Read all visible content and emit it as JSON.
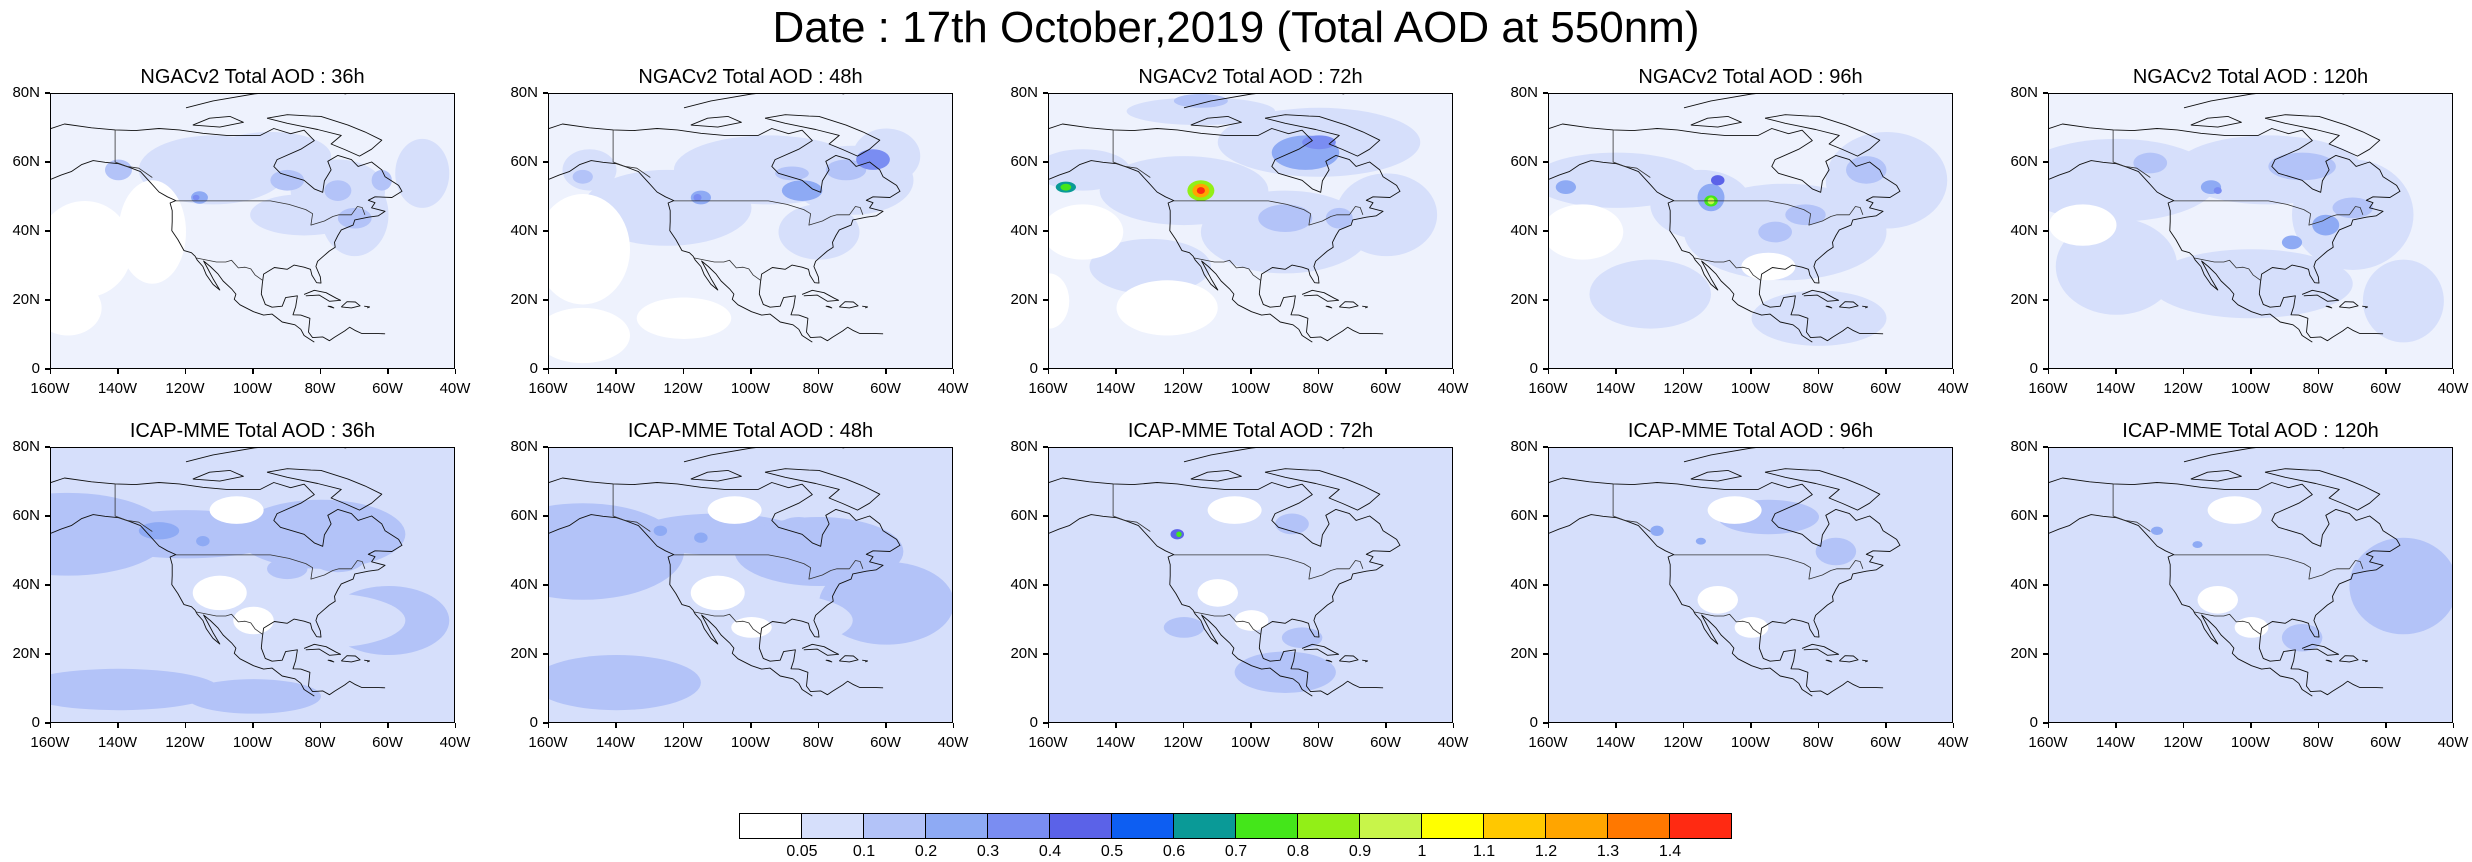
{
  "title": "Date : 17th October,2019 (Total AOD at 550nm)",
  "rows": [
    {
      "model": "NGACv2",
      "panels": [
        {
          "title": "NGACv2 Total AOD : 36h"
        },
        {
          "title": "NGACv2 Total AOD : 48h"
        },
        {
          "title": "NGACv2 Total AOD : 72h"
        },
        {
          "title": "NGACv2 Total AOD : 96h"
        },
        {
          "title": "NGACv2 Total AOD : 120h"
        }
      ]
    },
    {
      "model": "ICAP-MME",
      "panels": [
        {
          "title": "ICAP-MME Total AOD : 36h"
        },
        {
          "title": "ICAP-MME Total AOD : 48h"
        },
        {
          "title": "ICAP-MME Total AOD : 72h"
        },
        {
          "title": "ICAP-MME Total AOD : 96h"
        },
        {
          "title": "ICAP-MME Total AOD : 120h"
        }
      ]
    }
  ],
  "axes": {
    "lat_labels": [
      "80N",
      "60N",
      "40N",
      "20N",
      "0"
    ],
    "lon_labels": [
      "160W",
      "140W",
      "120W",
      "100W",
      "80W",
      "60W",
      "40W"
    ]
  },
  "colorbar": {
    "colors": [
      "#ffffff",
      "#d6dffb",
      "#b3c3f8",
      "#8eaaf4",
      "#7a8df2",
      "#5b62e8",
      "#0d5ef2",
      "#0a9a97",
      "#44e61a",
      "#92ef17",
      "#c8f54a",
      "#ffff00",
      "#ffc800",
      "#ffa500",
      "#ff7800",
      "#ff2a12"
    ],
    "labels": [
      "0.05",
      "0.1",
      "0.2",
      "0.3",
      "0.4",
      "0.5",
      "0.6",
      "0.7",
      "0.8",
      "0.9",
      "1",
      "1.1",
      "1.2",
      "1.3",
      "1.4"
    ]
  }
}
